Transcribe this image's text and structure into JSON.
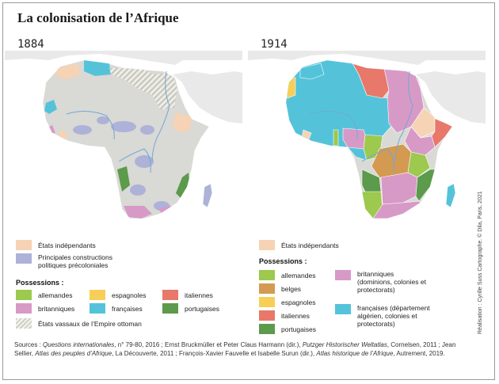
{
  "title": "La colonisation de l’Afrique",
  "maps": {
    "left_year": "1884",
    "right_year": "1914"
  },
  "colors": {
    "sea": "#ffffff",
    "land_outside": "#e9e9e9",
    "africa_base": "#d9d9d5",
    "independent": "#f5d3b4",
    "precolonial": "#aeb2d8",
    "german": "#9cc94e",
    "belgian": "#d49a52",
    "spanish": "#f6cf58",
    "italian": "#e8786a",
    "british": "#d79ac7",
    "french": "#54c3da",
    "portuguese": "#5c9a4c",
    "rivers": "#6fa8d4",
    "borders": "#ffffff"
  },
  "legend_left": {
    "independent": "États indépendants",
    "precolonial": "Principales constructions politiques précoloniales",
    "possessions_title": "Possessions :",
    "items": {
      "german": "allemandes",
      "spanish": "espagnoles",
      "italian": "italiennes",
      "british": "britanniques",
      "french": "françaises",
      "portuguese": "portugaises"
    },
    "vassal": "États vassaux de l’Empire ottoman"
  },
  "legend_right": {
    "independent": "États indépendants",
    "possessions_title": "Possessions :",
    "items": {
      "german": "allemandes",
      "belgian": "belges",
      "spanish": "espagnoles",
      "italian": "italiennes",
      "portuguese": "portugaises",
      "british": "britanniques (dominions, colonies et protectorats)",
      "french": "françaises (département algérien, colonies et protectorats)"
    }
  },
  "sources": {
    "prefix": "Sources : ",
    "title1": "Questions internationales",
    "part1": ", n° 79-80, 2016 ; Ernst Bruckmüller et Peter Claus Harmann (dir.), ",
    "title2": "Putzger Historischer Weltatlas",
    "part2": ", Cornelsen, 2011 ; Jean Sellier, ",
    "title3": "Atlas des peuples d’Afrique",
    "part3": ", La Découverte, 2011 ; François-Xavier Fauvelle et Isabelle Surun (dir.), ",
    "title4": "Atlas historique de l’Afrique",
    "part4": ", Autrement, 2019."
  },
  "credit": "Réalisation : Cyrille Suss Cartographe. © Dila, Paris, 2021"
}
